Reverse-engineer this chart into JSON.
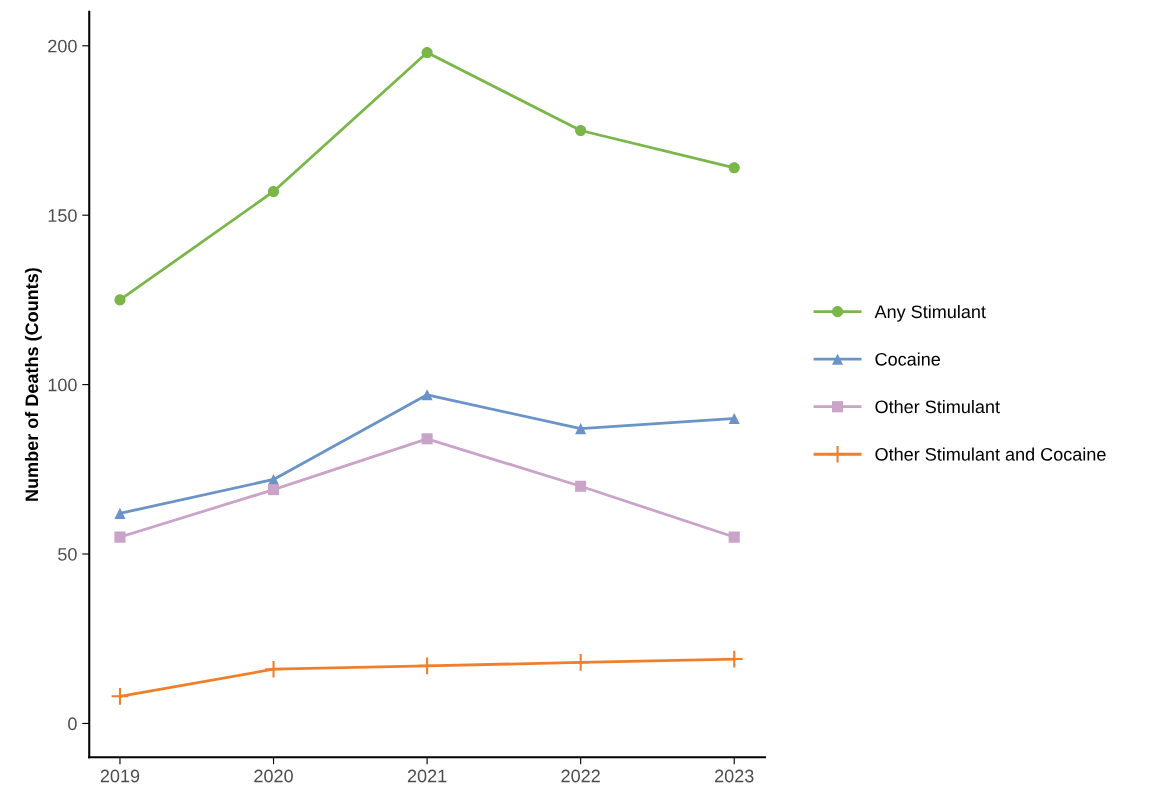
{
  "chart_data": {
    "type": "line",
    "ylabel": "Number of Deaths (Counts)",
    "categories": [
      "2019",
      "2020",
      "2021",
      "2022",
      "2023"
    ],
    "series": [
      {
        "name": "Any Stimulant",
        "color": "#7ab648",
        "marker": "circle",
        "values": [
          125,
          157,
          198,
          175,
          164
        ]
      },
      {
        "name": "Cocaine",
        "color": "#6a93c8",
        "marker": "triangle",
        "values": [
          62,
          72,
          97,
          87,
          90
        ]
      },
      {
        "name": "Other Stimulant",
        "color": "#c9a3c8",
        "marker": "square",
        "values": [
          55,
          69,
          84,
          70,
          55
        ]
      },
      {
        "name": "Other Stimulant and Cocaine",
        "color": "#f07f2c",
        "marker": "cross",
        "values": [
          8,
          16,
          17,
          18,
          19
        ]
      }
    ],
    "ylim": [
      -10,
      210
    ],
    "yticks": [
      0,
      50,
      100,
      150,
      200
    ],
    "grid": false,
    "legend": "right",
    "line_style": "solid"
  }
}
